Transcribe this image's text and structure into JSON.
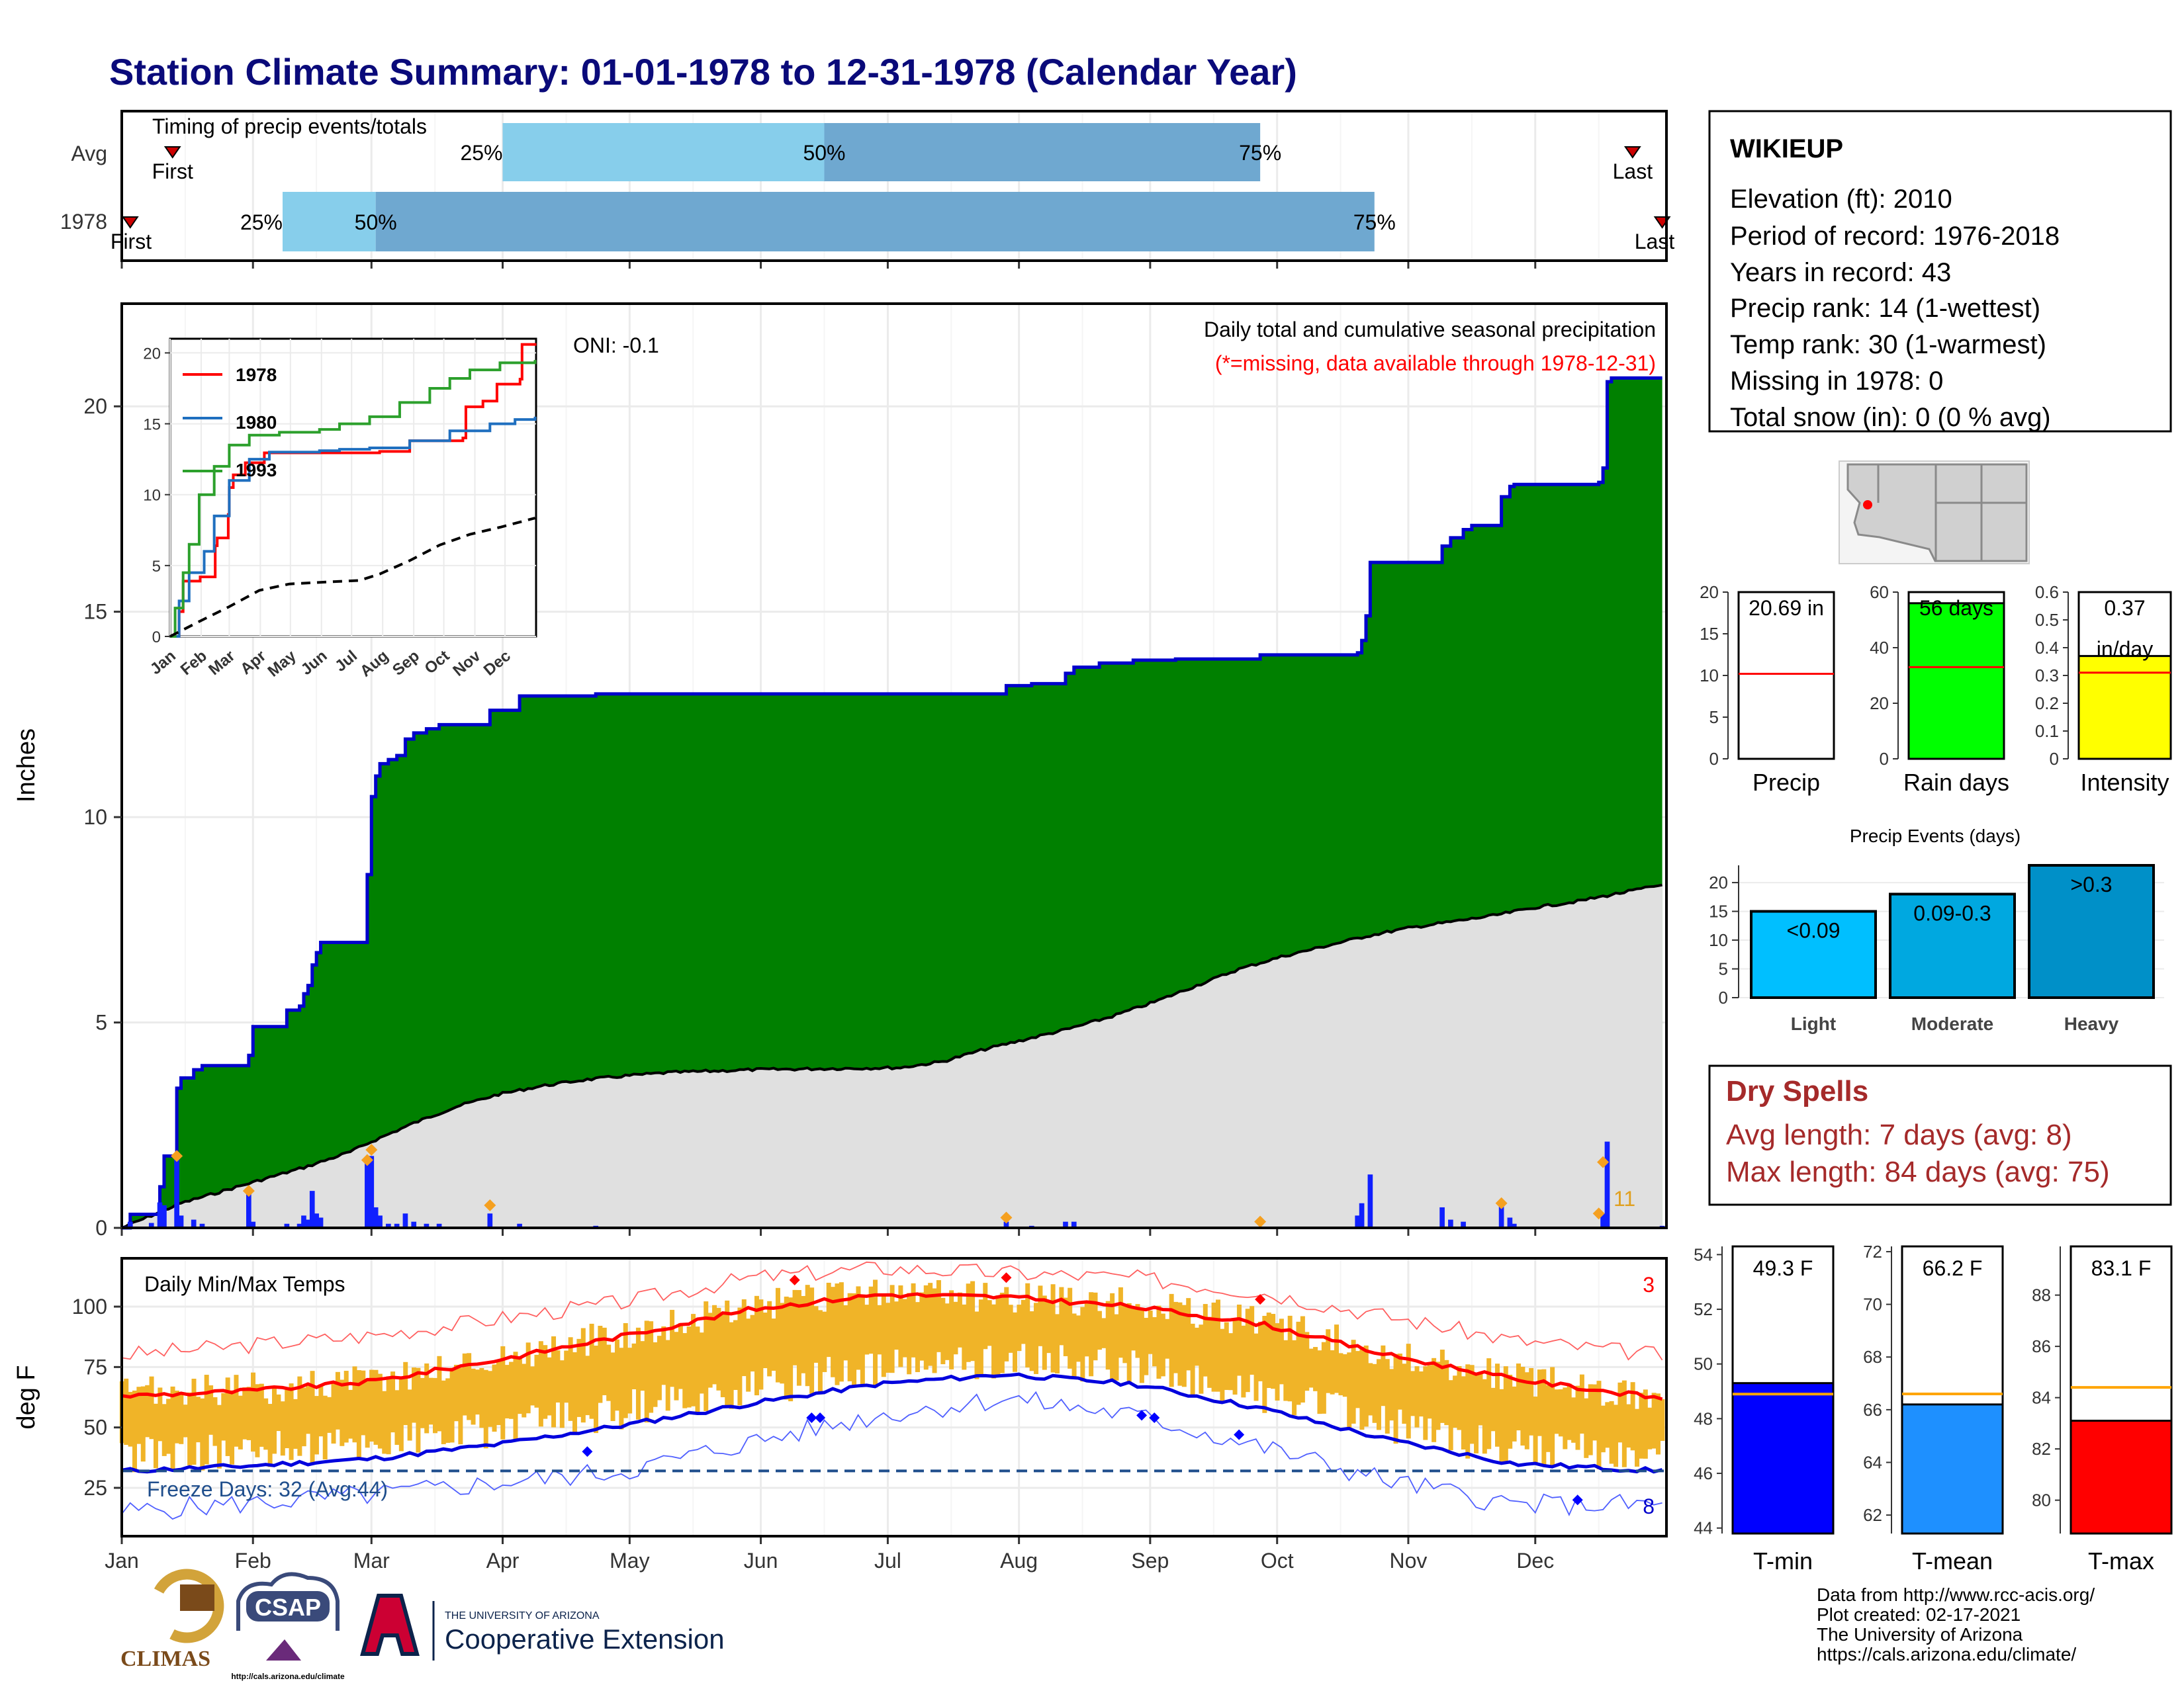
{
  "title": "Station Climate Summary: 01-01-1978 to 12-31-1978 (Calendar Year)",
  "months": [
    "Jan",
    "Feb",
    "Mar",
    "Apr",
    "May",
    "Jun",
    "Jul",
    "Aug",
    "Sep",
    "Oct",
    "Nov",
    "Dec"
  ],
  "timing_panel": {
    "title": "Timing of precip events/totals",
    "row_labels": [
      "Avg",
      "1978"
    ],
    "first_label": "First",
    "last_label": "Last",
    "pct_labels": [
      "25%",
      "50%",
      "75%"
    ]
  },
  "station": {
    "name": "WIKIEUP",
    "lines": [
      "Elevation (ft): 2010",
      "Period of record: 1976-2018",
      "Years in record: 43",
      "Precip rank: 14 (1-wettest)",
      "Temp rank: 30 (1-warmest)",
      "Missing in 1978: 0",
      "Total snow (in): 0 (0 % avg)"
    ]
  },
  "precip_panel": {
    "ylabel": "Inches",
    "title": "Daily total and cumulative seasonal precipitation",
    "subtitle": "(*=missing, data available through 1978-12-31)",
    "oni": "ONI: -0.1",
    "count_label": "11"
  },
  "inset": {
    "legend": [
      "1978",
      "1980",
      "1993"
    ]
  },
  "temp_panel": {
    "ylabel": "deg F",
    "title": "Daily Min/Max Temps",
    "freeze_text": "Freeze Days: 32 (Avg:44)",
    "top_count": "3",
    "bottom_count": "8"
  },
  "summary_bars": {
    "precip": {
      "label": "Precip",
      "value_text": "20.69 in"
    },
    "raindays": {
      "label": "Rain days",
      "value_text": "56 days"
    },
    "intensity": {
      "label": "Intensity",
      "value_text": "0.37",
      "unit_text": "in/day"
    }
  },
  "events": {
    "title": "Precip Events (days)",
    "categories": [
      "Light",
      "Moderate",
      "Heavy"
    ],
    "bar_labels": [
      "<0.09",
      "0.09-0.3",
      ">0.3"
    ]
  },
  "dry_spells": {
    "title": "Dry Spells",
    "avg_line": "Avg length: 7 days (avg: 8)",
    "max_line": "Max length: 84 days (avg: 75)"
  },
  "temp_bars": {
    "tmin": {
      "label": "T-min",
      "value_text": "49.3 F"
    },
    "tmean": {
      "label": "T-mean",
      "value_text": "66.2 F"
    },
    "tmax": {
      "label": "T-max",
      "value_text": "83.1 F"
    }
  },
  "logos": {
    "climas": "CLIMAS",
    "csap": "CSAP",
    "csap_url": "http://cals.arizona.edu/climate",
    "ua_top": "THE UNIVERSITY OF ARIZONA",
    "ua_main": "Cooperative Extension"
  },
  "credits": [
    "Data from http://www.rcc-acis.org/",
    "Plot created: 02-17-2021",
    "The University of Arizona",
    "https://cals.arizona.edu/climate/"
  ],
  "colors": {
    "cum_fill": "#008000",
    "cum_line": "#0000cc",
    "avg_fill": "#e0e0e0",
    "temp_band": "#f0b428",
    "tmax_line": "#ff0000",
    "tmin_line": "#0000dd",
    "freeze_line": "#1f4e8c",
    "pct_light": "#87ceeb",
    "pct_dark": "#6fa8d0",
    "rain_days_fill": "#00ff00",
    "intensity_fill": "#ffff00",
    "light_fill": "#00bfff",
    "moderate_fill": "#00a8e0",
    "heavy_fill": "#0090c8",
    "tmin_fill": "#0000ff",
    "tmean_fill": "#1e90ff",
    "tmax_fill": "#ff0000",
    "avg_ref_line": "#ffa500"
  },
  "chart_data": [
    {
      "id": "timing",
      "type": "bar",
      "rows": [
        {
          "name": "Avg",
          "first": "01-13",
          "q25": "04-01",
          "q50": "06-16",
          "q75": "09-27",
          "last": "12-24"
        },
        {
          "name": "1978",
          "first": "01-03",
          "q25": "02-08",
          "q50": "03-02",
          "q75": "10-24",
          "last": "12-31"
        }
      ]
    },
    {
      "id": "precip",
      "type": "area",
      "ylim": [
        0,
        22.5
      ],
      "yticks": [
        0,
        5,
        10,
        15,
        20
      ],
      "cumulative_1978": [
        [
          1,
          0
        ],
        [
          3,
          0.33
        ],
        [
          10,
          0.33
        ],
        [
          10,
          1.0
        ],
        [
          11,
          1.75
        ],
        [
          14,
          1.75
        ],
        [
          14,
          3.4
        ],
        [
          15,
          3.65
        ],
        [
          18,
          3.85
        ],
        [
          20,
          3.95
        ],
        [
          31,
          3.95
        ],
        [
          31,
          4.2
        ],
        [
          32,
          4.3
        ],
        [
          32,
          4.9
        ],
        [
          40,
          4.9
        ],
        [
          40,
          5.3
        ],
        [
          43,
          5.4
        ],
        [
          44,
          5.7
        ],
        [
          45,
          5.9
        ],
        [
          46,
          6.4
        ],
        [
          47,
          6.7
        ],
        [
          48,
          6.95
        ],
        [
          59,
          6.95
        ],
        [
          59,
          8.6
        ],
        [
          60,
          8.7
        ],
        [
          60,
          10.5
        ],
        [
          61,
          11.0
        ],
        [
          62,
          11.3
        ],
        [
          64,
          11.4
        ],
        [
          66,
          11.5
        ],
        [
          68,
          11.9
        ],
        [
          70,
          12.05
        ],
        [
          73,
          12.15
        ],
        [
          76,
          12.25
        ],
        [
          88,
          12.25
        ],
        [
          88,
          12.6
        ],
        [
          95,
          12.95
        ],
        [
          113,
          13.0
        ],
        [
          210,
          13.05
        ],
        [
          210,
          13.2
        ],
        [
          216,
          13.25
        ],
        [
          224,
          13.5
        ],
        [
          226,
          13.65
        ],
        [
          232,
          13.75
        ],
        [
          240,
          13.82
        ],
        [
          250,
          13.85
        ],
        [
          270,
          13.95
        ],
        [
          293,
          14.0
        ],
        [
          294,
          14.3
        ],
        [
          295,
          14.9
        ],
        [
          296,
          16.2
        ],
        [
          313,
          16.3
        ],
        [
          313,
          16.6
        ],
        [
          315,
          16.8
        ],
        [
          318,
          17.0
        ],
        [
          320,
          17.1
        ],
        [
          327,
          17.15
        ],
        [
          327,
          17.8
        ],
        [
          329,
          18.05
        ],
        [
          330,
          18.1
        ],
        [
          350,
          18.15
        ],
        [
          351,
          18.5
        ],
        [
          352,
          20.6
        ],
        [
          353,
          20.69
        ],
        [
          365,
          20.69
        ]
      ],
      "average_cumulative": [
        [
          1,
          0
        ],
        [
          15,
          0.6
        ],
        [
          30,
          1.05
        ],
        [
          45,
          1.5
        ],
        [
          55,
          1.85
        ],
        [
          60,
          2.1
        ],
        [
          70,
          2.55
        ],
        [
          80,
          2.95
        ],
        [
          90,
          3.25
        ],
        [
          100,
          3.45
        ],
        [
          110,
          3.6
        ],
        [
          120,
          3.7
        ],
        [
          130,
          3.78
        ],
        [
          150,
          3.85
        ],
        [
          170,
          3.88
        ],
        [
          185,
          3.9
        ],
        [
          195,
          4.05
        ],
        [
          205,
          4.35
        ],
        [
          215,
          4.6
        ],
        [
          225,
          4.85
        ],
        [
          235,
          5.15
        ],
        [
          245,
          5.5
        ],
        [
          255,
          5.9
        ],
        [
          265,
          6.3
        ],
        [
          275,
          6.6
        ],
        [
          285,
          6.85
        ],
        [
          295,
          7.1
        ],
        [
          305,
          7.3
        ],
        [
          315,
          7.45
        ],
        [
          325,
          7.6
        ],
        [
          335,
          7.8
        ],
        [
          345,
          7.95
        ],
        [
          355,
          8.15
        ],
        [
          365,
          8.35
        ]
      ],
      "daily_1978": [
        [
          3,
          0.15
        ],
        [
          8,
          0.12
        ],
        [
          10,
          0.62
        ],
        [
          11,
          0.55
        ],
        [
          14,
          1.7
        ],
        [
          15,
          0.3
        ],
        [
          18,
          0.2
        ],
        [
          20,
          0.1
        ],
        [
          31,
          0.9
        ],
        [
          32,
          0.15
        ],
        [
          40,
          0.1
        ],
        [
          43,
          0.1
        ],
        [
          44,
          0.3
        ],
        [
          45,
          0.2
        ],
        [
          46,
          0.9
        ],
        [
          47,
          0.35
        ],
        [
          48,
          0.25
        ],
        [
          59,
          1.65
        ],
        [
          60,
          1.75
        ],
        [
          61,
          0.5
        ],
        [
          62,
          0.3
        ],
        [
          64,
          0.1
        ],
        [
          66,
          0.1
        ],
        [
          68,
          0.35
        ],
        [
          70,
          0.15
        ],
        [
          73,
          0.1
        ],
        [
          76,
          0.1
        ],
        [
          88,
          0.35
        ],
        [
          95,
          0.1
        ],
        [
          113,
          0.05
        ],
        [
          210,
          0.15
        ],
        [
          216,
          0.05
        ],
        [
          224,
          0.15
        ],
        [
          226,
          0.15
        ],
        [
          293,
          0.3
        ],
        [
          294,
          0.6
        ],
        [
          296,
          1.3
        ],
        [
          313,
          0.5
        ],
        [
          315,
          0.2
        ],
        [
          318,
          0.15
        ],
        [
          327,
          0.65
        ],
        [
          329,
          0.25
        ],
        [
          330,
          0.1
        ],
        [
          351,
          0.35
        ],
        [
          352,
          2.1
        ],
        [
          365,
          0.05
        ]
      ]
    },
    {
      "id": "inset",
      "type": "line",
      "ylim": [
        0,
        21
      ],
      "yticks": [
        0,
        5,
        10,
        15,
        20
      ],
      "series": [
        {
          "name": "1978",
          "values": [
            [
              1,
              0
            ],
            [
              10,
              1.75
            ],
            [
              14,
              3.9
            ],
            [
              31,
              4.2
            ],
            [
              46,
              6.4
            ],
            [
              48,
              6.95
            ],
            [
              59,
              8.6
            ],
            [
              60,
              10.5
            ],
            [
              64,
              11.4
            ],
            [
              76,
              12.25
            ],
            [
              95,
              12.95
            ],
            [
              210,
              13.05
            ],
            [
              240,
              13.8
            ],
            [
              293,
              14.0
            ],
            [
              296,
              16.2
            ],
            [
              313,
              16.6
            ],
            [
              327,
              17.8
            ],
            [
              350,
              18.15
            ],
            [
              352,
              20.6
            ],
            [
              365,
              20.69
            ]
          ]
        },
        {
          "name": "1980",
          "values": [
            [
              1,
              0
            ],
            [
              10,
              2.5
            ],
            [
              20,
              4.5
            ],
            [
              35,
              6.0
            ],
            [
              45,
              8.5
            ],
            [
              60,
              11.0
            ],
            [
              80,
              12.5
            ],
            [
              100,
              13.0
            ],
            [
              150,
              13.1
            ],
            [
              170,
              13.2
            ],
            [
              200,
              13.3
            ],
            [
              240,
              13.8
            ],
            [
              280,
              14.5
            ],
            [
              320,
              15.0
            ],
            [
              345,
              15.3
            ],
            [
              365,
              15.5
            ]
          ]
        },
        {
          "name": "1993",
          "values": [
            [
              1,
              0
            ],
            [
              6,
              2.0
            ],
            [
              14,
              4.5
            ],
            [
              20,
              6.5
            ],
            [
              30,
              10.0
            ],
            [
              45,
              12.0
            ],
            [
              60,
              13.5
            ],
            [
              80,
              14.2
            ],
            [
              110,
              14.4
            ],
            [
              150,
              14.6
            ],
            [
              170,
              15.0
            ],
            [
              200,
              15.5
            ],
            [
              230,
              16.5
            ],
            [
              260,
              17.5
            ],
            [
              280,
              18.2
            ],
            [
              300,
              18.8
            ],
            [
              330,
              19.3
            ],
            [
              365,
              19.5
            ]
          ]
        },
        {
          "name": "average",
          "values": [
            [
              1,
              0
            ],
            [
              30,
              1.05
            ],
            [
              60,
              2.1
            ],
            [
              90,
              3.25
            ],
            [
              120,
              3.7
            ],
            [
              160,
              3.85
            ],
            [
              190,
              3.95
            ],
            [
              210,
              4.4
            ],
            [
              240,
              5.35
            ],
            [
              270,
              6.45
            ],
            [
              300,
              7.2
            ],
            [
              330,
              7.7
            ],
            [
              365,
              8.35
            ]
          ]
        }
      ]
    },
    {
      "id": "temps",
      "type": "line",
      "ylim": [
        5,
        120
      ],
      "yticks": [
        25,
        50,
        75,
        100
      ],
      "freeze_threshold": 32,
      "avg_max": [
        [
          1,
          63
        ],
        [
          30,
          65
        ],
        [
          60,
          69
        ],
        [
          90,
          78
        ],
        [
          120,
          88
        ],
        [
          150,
          99
        ],
        [
          180,
          105
        ],
        [
          210,
          104
        ],
        [
          240,
          100
        ],
        [
          270,
          93
        ],
        [
          300,
          80
        ],
        [
          330,
          70
        ],
        [
          365,
          62
        ]
      ],
      "avg_min": [
        [
          1,
          32
        ],
        [
          30,
          34
        ],
        [
          60,
          37
        ],
        [
          90,
          43
        ],
        [
          120,
          51
        ],
        [
          150,
          60
        ],
        [
          180,
          68
        ],
        [
          210,
          72
        ],
        [
          240,
          68
        ],
        [
          270,
          58
        ],
        [
          300,
          45
        ],
        [
          330,
          35
        ],
        [
          365,
          32
        ]
      ],
      "record_max": [
        [
          1,
          80
        ],
        [
          60,
          88
        ],
        [
          120,
          102
        ],
        [
          150,
          112
        ],
        [
          180,
          116
        ],
        [
          210,
          114
        ],
        [
          240,
          112
        ],
        [
          270,
          106
        ],
        [
          300,
          96
        ],
        [
          330,
          86
        ],
        [
          365,
          80
        ]
      ],
      "record_min": [
        [
          1,
          15
        ],
        [
          60,
          22
        ],
        [
          120,
          32
        ],
        [
          150,
          44
        ],
        [
          180,
          55
        ],
        [
          210,
          62
        ],
        [
          240,
          55
        ],
        [
          270,
          42
        ],
        [
          300,
          28
        ],
        [
          330,
          18
        ],
        [
          365,
          18
        ]
      ]
    },
    {
      "id": "summary",
      "type": "bar",
      "categories": [
        "Precip",
        "Rain days",
        "Intensity"
      ],
      "values": [
        20.69,
        56,
        0.37
      ],
      "averages": [
        10.2,
        33,
        0.31
      ],
      "ylims": [
        [
          0,
          20
        ],
        [
          0,
          60
        ],
        [
          0,
          0.6
        ]
      ]
    },
    {
      "id": "events",
      "type": "bar",
      "categories": [
        "Light",
        "Moderate",
        "Heavy"
      ],
      "values": [
        15,
        18,
        23
      ],
      "ylim": [
        0,
        23
      ]
    },
    {
      "id": "temp_summary",
      "type": "bar",
      "categories": [
        "T-min",
        "T-mean",
        "T-max"
      ],
      "values": [
        49.3,
        66.2,
        83.1
      ],
      "averages": [
        48.9,
        66.6,
        84.4
      ],
      "ylims": [
        [
          43.8,
          54.3
        ],
        [
          61.3,
          72.2
        ],
        [
          78.7,
          89.9
        ]
      ]
    }
  ]
}
